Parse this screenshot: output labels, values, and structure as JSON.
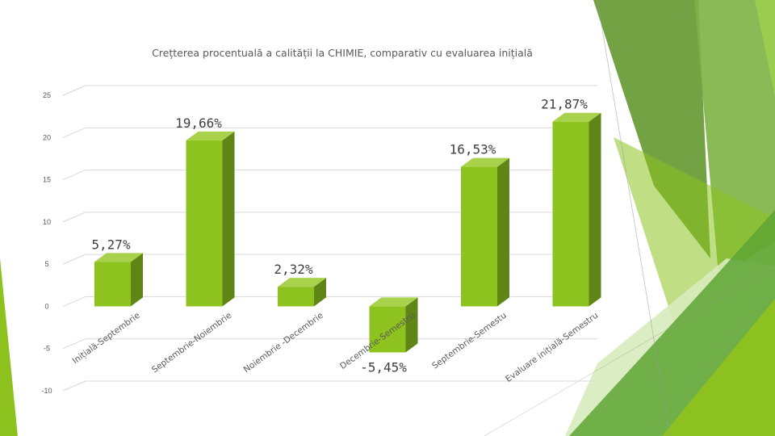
{
  "chart_data": {
    "type": "bar",
    "title": "Crețterea procentuală a calității la CHIMIE, comparativ cu evaluarea inițială",
    "categories": [
      "Inițială-Septembrie",
      "Septembrie-Noiembrie",
      "Noiembrie -Decembrie",
      "Decembrie-Semestru",
      "Septembrie-Semestu",
      "Evaluare inițială-Semestru"
    ],
    "values": [
      5.27,
      19.66,
      2.32,
      -5.45,
      16.53,
      21.87
    ],
    "data_labels": [
      "5,27%",
      "19,66%",
      "2,32%",
      "-5,45%",
      "16,53%",
      "21,87%"
    ],
    "y_ticks": [
      "-10",
      "-5",
      "0",
      "5",
      "10",
      "15",
      "20",
      "25"
    ],
    "ylim": [
      -10,
      25
    ],
    "grid": true,
    "legend": "none",
    "xlabel": "",
    "ylabel": "",
    "colors": {
      "bar_front": "#8dc21f",
      "bar_side": "#5e8516",
      "bar_top": "#a9d24c",
      "deco_dark": "#4e8a23",
      "deco_mid": "#7cb342",
      "deco_light": "#c5e0a5"
    }
  }
}
